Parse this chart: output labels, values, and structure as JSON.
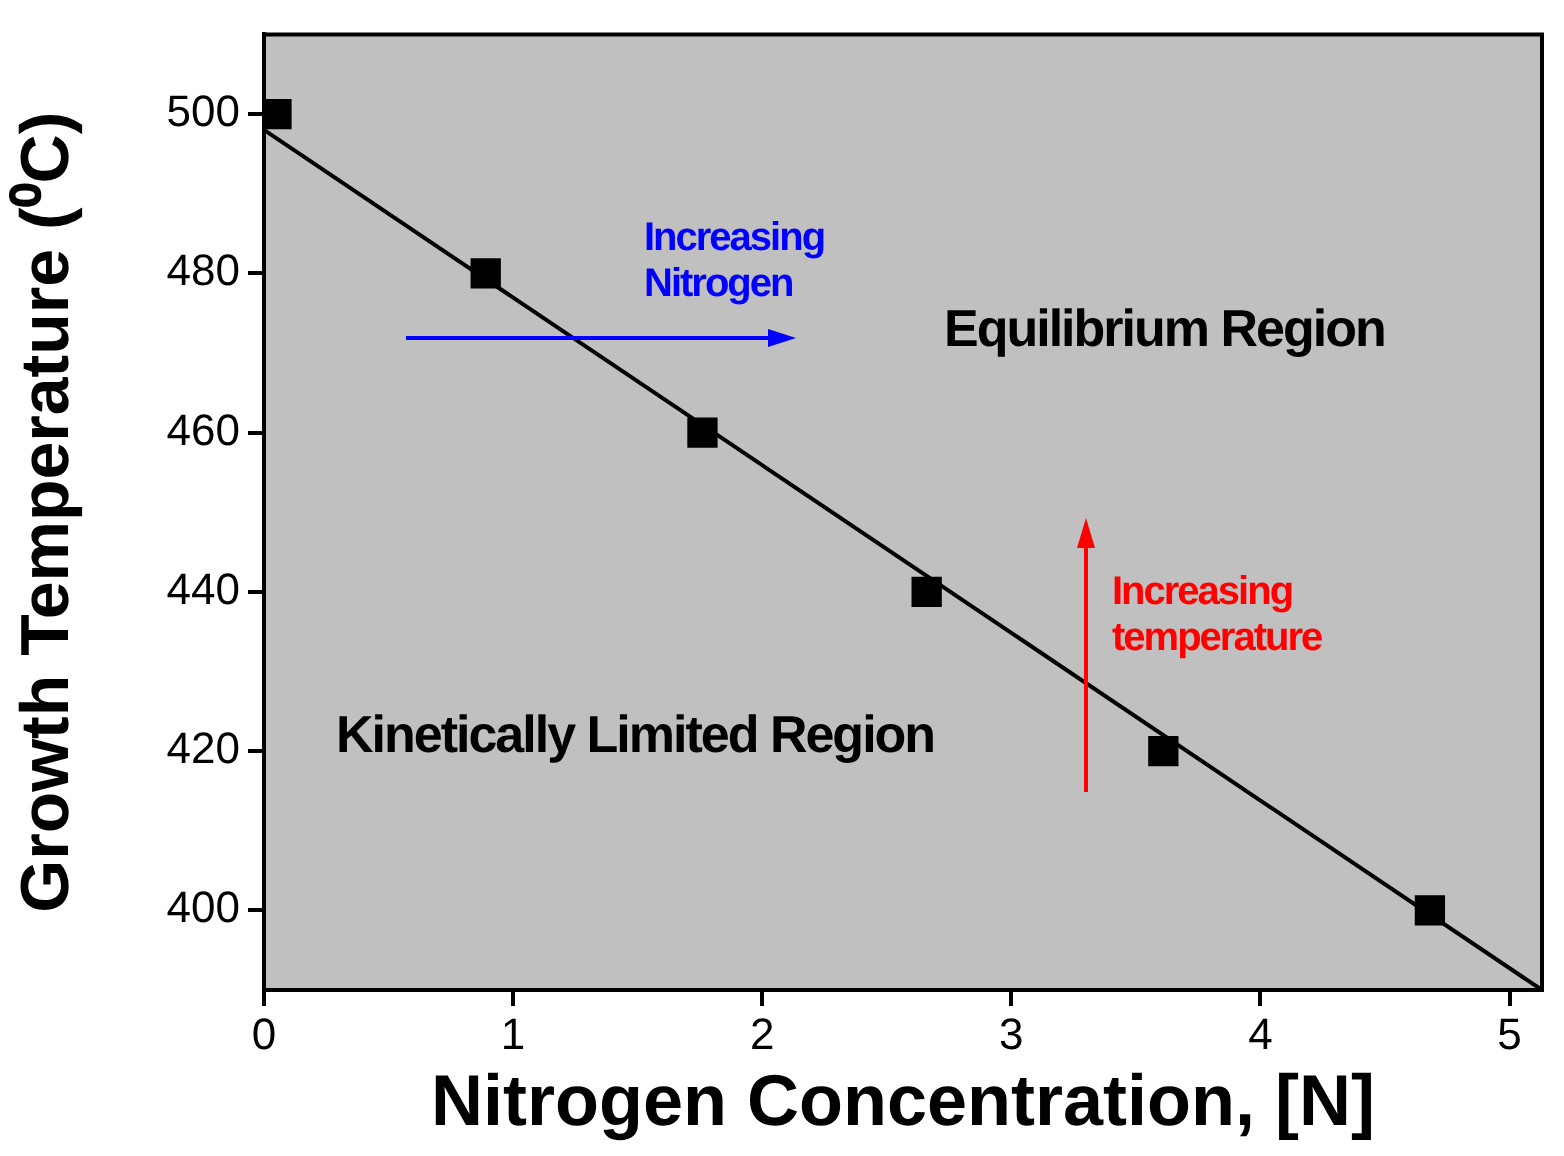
{
  "chart_data": {
    "type": "scatter",
    "xlabel": "Nitrogen Concentration, [N]",
    "ylabel": "Growth Temperature (⁰C)",
    "xlim": [
      0,
      5.13
    ],
    "ylim": [
      390,
      510
    ],
    "xticks": [
      0,
      1,
      2,
      3,
      4,
      5
    ],
    "yticks": [
      400,
      420,
      440,
      460,
      480,
      500
    ],
    "grid": false,
    "legend": false,
    "marker": "square",
    "series": [
      {
        "type": "scatter",
        "color": "#000000",
        "x": [
          0.05,
          0.89,
          1.76,
          2.66,
          3.61,
          4.68
        ],
        "values": [
          500,
          480,
          460,
          440,
          420,
          400
        ]
      },
      {
        "type": "line",
        "color": "#000000",
        "marker": "none",
        "line_style": "solid",
        "x": [
          0,
          5.13
        ],
        "values": [
          498,
          390
        ]
      }
    ],
    "annotations": [
      "Increasing Nitrogen",
      "Equilibrium Region",
      "Increasing temperature",
      "Kinetically Limited Region"
    ]
  }
}
